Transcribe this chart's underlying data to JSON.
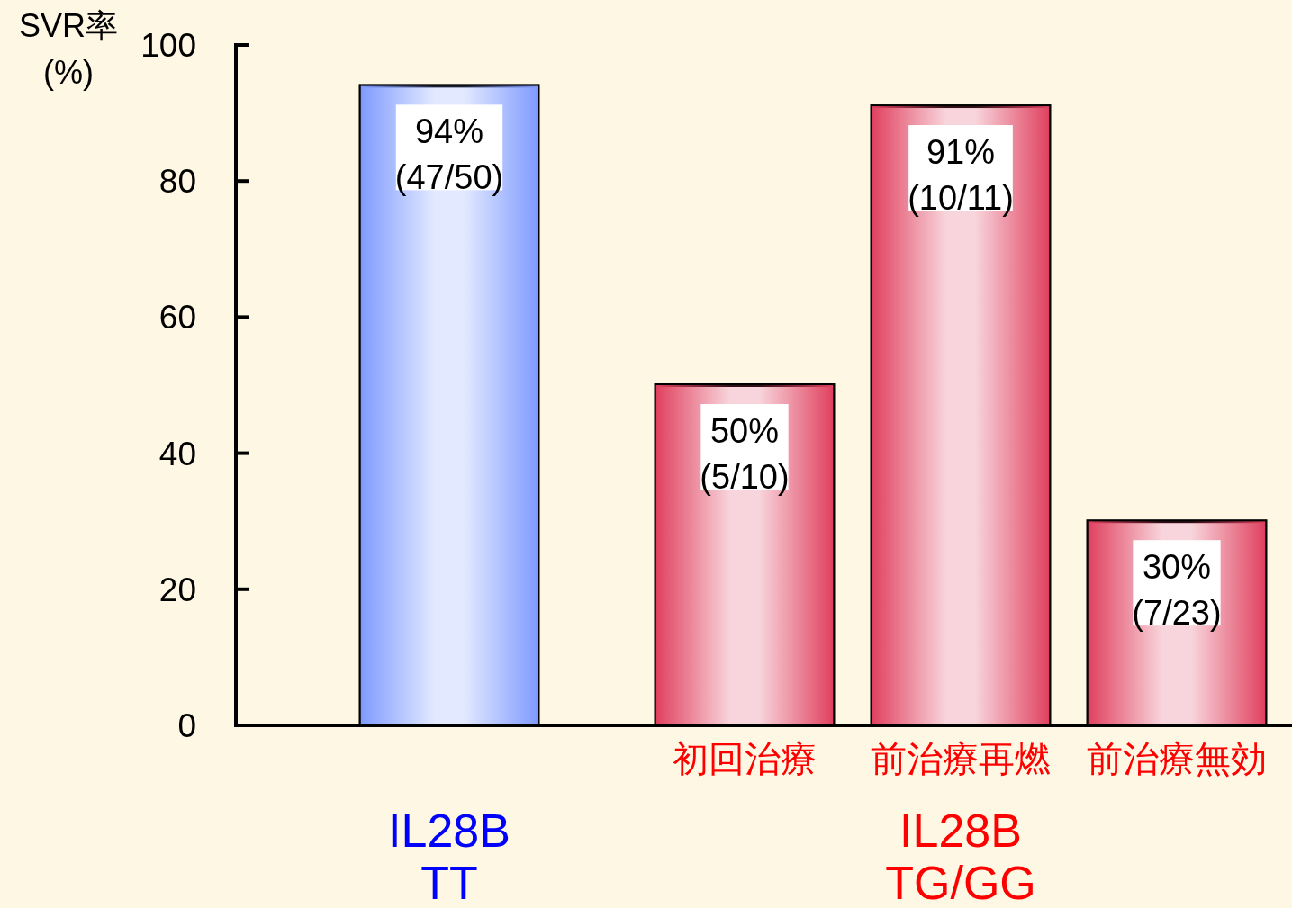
{
  "chart_data": {
    "type": "bar",
    "ylabel": "SVR率\n(%)",
    "categories": [
      null,
      "初回治療",
      "前治療再燃",
      "前治療無効"
    ],
    "values": [
      94,
      50,
      91,
      30
    ],
    "colors": [
      "#7f9bff",
      "#e0415f",
      "#e0415f",
      "#e0415f"
    ],
    "value_labels": [
      "94%\n(47/50)",
      "50%\n(5/10)",
      "91%\n(10/11)",
      "30%\n(7/23)"
    ],
    "ylim": [
      0,
      100
    ],
    "yticks": [
      0,
      20,
      40,
      60,
      80,
      100
    ],
    "annotations": [
      "IL28B\nTT",
      "IL28B\nTG/GG"
    ]
  }
}
